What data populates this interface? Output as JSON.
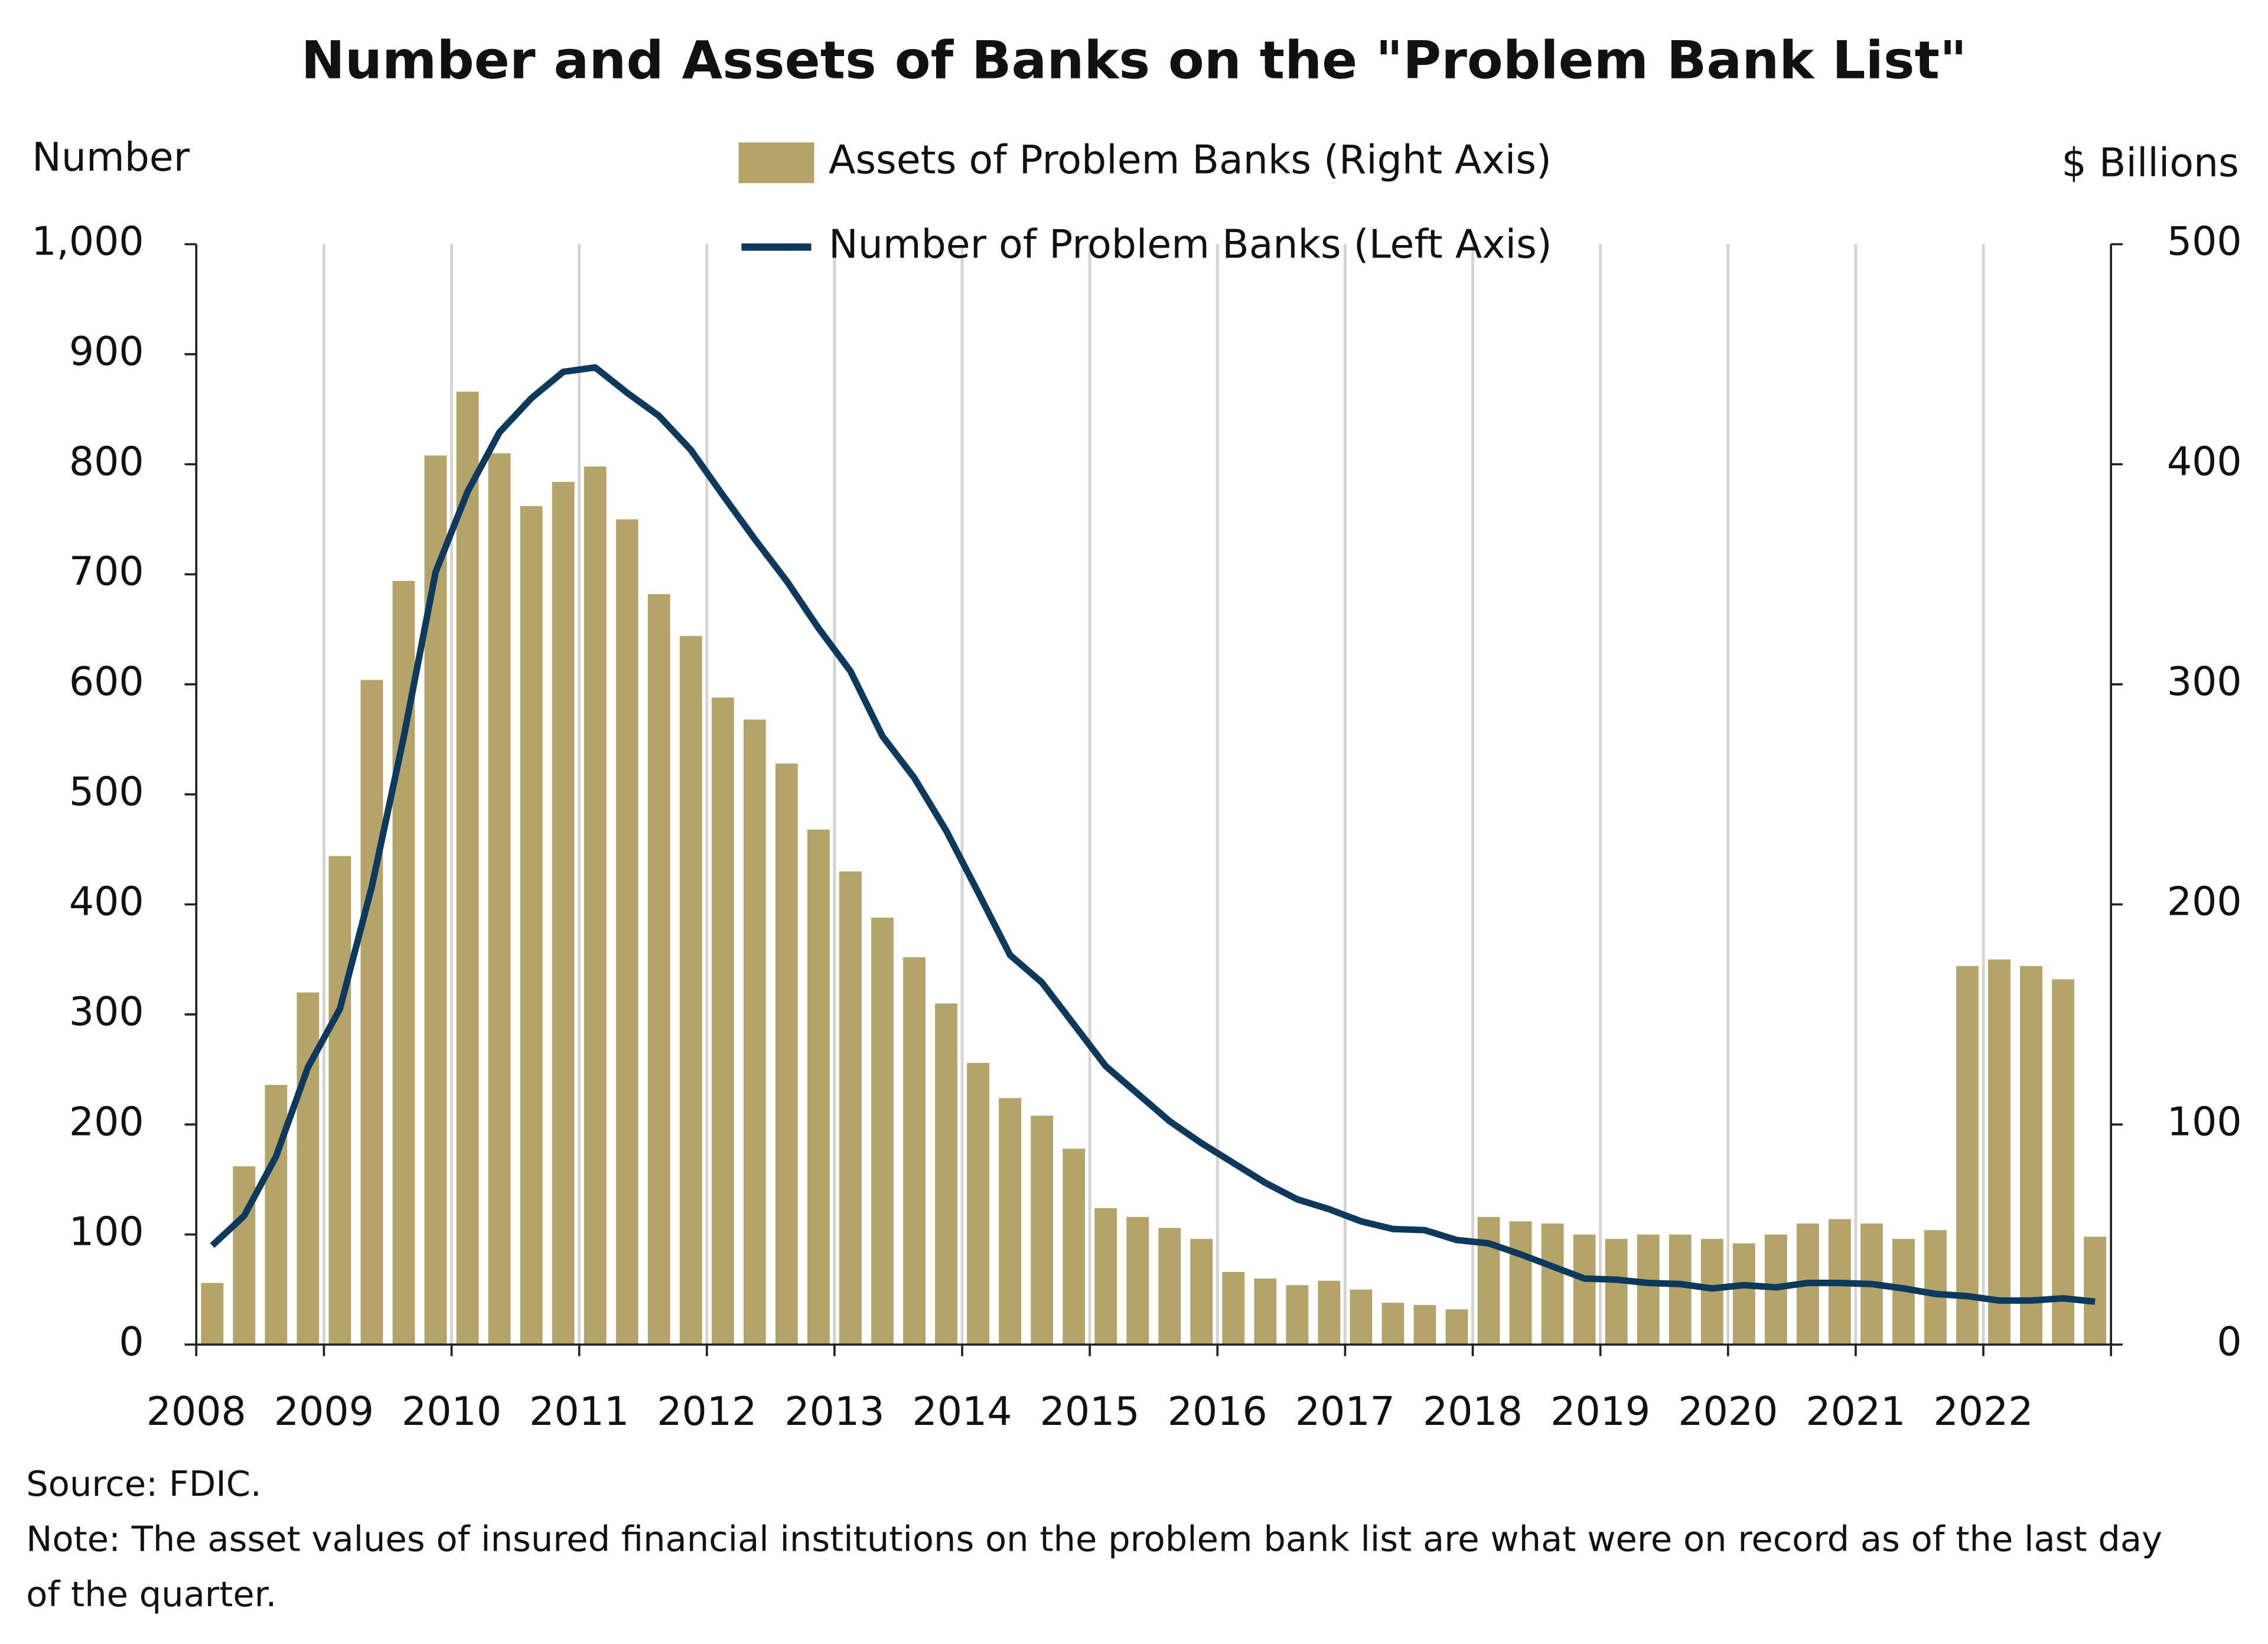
{
  "chart_data": {
    "type": "bar-line",
    "title": "Number and Assets of Banks on the \"Problem Bank List\"",
    "y_label": "Number",
    "y2_label": "$ Billions",
    "source": "Source: FDIC.",
    "note": "Note: The asset values of insured financial institutions on the problem bank list are what were on record as of the last day of the quarter.",
    "categories": [
      "2008",
      null,
      null,
      null,
      "2009",
      null,
      null,
      null,
      "2010",
      null,
      null,
      null,
      "2011",
      null,
      null,
      null,
      "2012",
      null,
      null,
      null,
      "2013",
      null,
      null,
      null,
      "2014",
      null,
      null,
      null,
      "2015",
      null,
      null,
      null,
      "2016",
      null,
      null,
      null,
      "2017",
      null,
      null,
      null,
      "2018",
      null,
      null,
      null,
      "2019",
      null,
      null,
      null,
      "2020",
      null,
      null,
      null,
      "2021",
      null,
      null,
      null,
      "2022",
      null,
      null,
      null
    ],
    "series": [
      {
        "name": "Assets of Problem Banks (Right Axis)",
        "type": "bar",
        "axis": "y2",
        "color": "#b5a46a",
        "values": [
          28,
          81,
          118,
          160,
          222,
          302,
          347,
          404,
          433,
          405,
          381,
          392,
          399,
          375,
          341,
          322,
          294,
          284,
          264,
          234,
          215,
          194,
          176,
          155,
          128,
          112,
          104,
          89,
          62,
          58,
          53,
          48,
          33,
          30,
          27,
          29,
          25,
          19,
          18,
          16,
          58,
          56,
          55,
          50,
          48,
          50,
          50,
          48,
          46,
          50,
          55,
          57,
          55,
          48,
          52,
          172,
          175,
          172,
          166,
          49
        ]
      },
      {
        "name": "Number of Problem Banks (Left Axis)",
        "type": "line",
        "axis": "y",
        "color": "#0d3a5c",
        "values": [
          90,
          117,
          171,
          252,
          305,
          416,
          552,
          702,
          775,
          829,
          860,
          884,
          888,
          865,
          844,
          813,
          772,
          732,
          694,
          651,
          612,
          553,
          515,
          467,
          411,
          354,
          329,
          291,
          253,
          228,
          203,
          183,
          165,
          147,
          132,
          123,
          112,
          105,
          104,
          95,
          92,
          82,
          71,
          60,
          59,
          56,
          55,
          51,
          54,
          52,
          56,
          56,
          55,
          51,
          46,
          44,
          40,
          40,
          42,
          39
        ]
      }
    ],
    "ylim": [
      0,
      1000
    ],
    "yticks": [
      0,
      100,
      200,
      300,
      400,
      500,
      600,
      700,
      800,
      900,
      {
        "value": 1000,
        "label": "1,000"
      }
    ],
    "y2lim": [
      0,
      500
    ],
    "y2ticks": [
      0,
      100,
      200,
      300,
      400,
      500
    ],
    "grid": true
  }
}
